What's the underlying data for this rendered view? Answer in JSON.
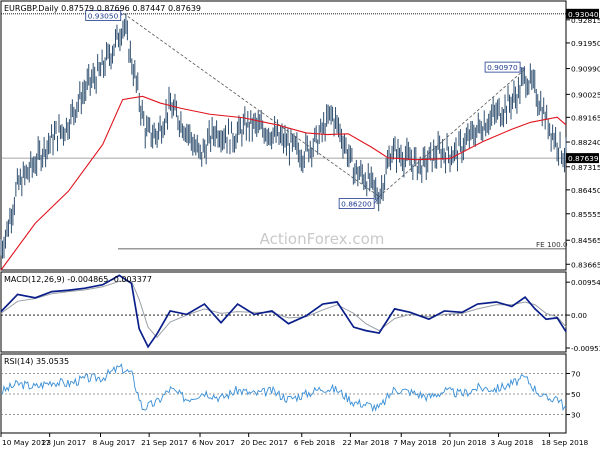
{
  "chart_data": {
    "type": "line",
    "symbol_header": "EURGBP.Daily  0.87579 0.87696 0.87447 0.87639",
    "watermark": "ActionForex.com",
    "x_tick_labels": [
      "10 May 2017",
      "23 Jun 2017",
      "8 Aug 2017",
      "21 Sep 2017",
      "6 Nov 2017",
      "20 Dec 2017",
      "6 Feb 2018",
      "22 Mar 2018",
      "7 May 2018",
      "20 Jun 2018",
      "3 Aug 2018",
      "18 Sep 2018"
    ],
    "main": {
      "y_ticks": [
        "0.92815",
        "0.91950",
        "0.90990",
        "0.90025",
        "0.89165",
        "0.88240",
        "0.87315",
        "0.86450",
        "0.85555",
        "0.84565",
        "0.83665"
      ],
      "ylim": [
        0.8345,
        0.9352
      ],
      "top_right_label": "0.93040",
      "last_price": 0.87639,
      "last_price_label": "0.87639",
      "fe_label": "FE 100.0",
      "fe_level": 0.8424,
      "annotations": [
        {
          "label": "0.93050",
          "date": "2017-08-29",
          "value": 0.9305
        },
        {
          "label": "0.86200",
          "date": "2018-04-17",
          "value": 0.862
        },
        {
          "label": "0.90970",
          "date": "2018-08-27",
          "value": 0.9097
        }
      ],
      "price_series": {
        "name": "",
        "dates": [
          "2017-05-10",
          "2017-05-15",
          "2017-05-25",
          "2017-06-05",
          "2017-06-15",
          "2017-06-28",
          "2017-07-08",
          "2017-07-18",
          "2017-07-28",
          "2017-08-08",
          "2017-08-20",
          "2017-08-29",
          "2017-09-08",
          "2017-09-18",
          "2017-09-28",
          "2017-10-10",
          "2017-10-25",
          "2017-11-06",
          "2017-11-20",
          "2017-12-05",
          "2017-12-20",
          "2018-01-05",
          "2018-01-20",
          "2018-02-06",
          "2018-02-20",
          "2018-03-05",
          "2018-03-15",
          "2018-03-25",
          "2018-04-05",
          "2018-04-17",
          "2018-04-28",
          "2018-05-10",
          "2018-05-25",
          "2018-06-10",
          "2018-06-25",
          "2018-07-10",
          "2018-07-25",
          "2018-08-05",
          "2018-08-20",
          "2018-08-27",
          "2018-09-05",
          "2018-09-15",
          "2018-09-25",
          "2018-10-03"
        ],
        "values": [
          0.8425,
          0.8485,
          0.866,
          0.872,
          0.878,
          0.885,
          0.888,
          0.897,
          0.904,
          0.909,
          0.918,
          0.927,
          0.907,
          0.886,
          0.885,
          0.896,
          0.887,
          0.877,
          0.887,
          0.884,
          0.889,
          0.887,
          0.883,
          0.878,
          0.883,
          0.893,
          0.884,
          0.872,
          0.869,
          0.862,
          0.879,
          0.877,
          0.873,
          0.879,
          0.878,
          0.885,
          0.891,
          0.894,
          0.9,
          0.907,
          0.902,
          0.891,
          0.882,
          0.8764
        ]
      },
      "ma_series": {
        "name": "",
        "dates": [
          "2017-05-10",
          "2017-06-10",
          "2017-07-10",
          "2017-08-10",
          "2017-08-28",
          "2017-09-15",
          "2017-10-01",
          "2017-10-20",
          "2017-11-15",
          "2017-12-15",
          "2018-01-15",
          "2018-02-10",
          "2018-03-01",
          "2018-03-20",
          "2018-04-10",
          "2018-04-25",
          "2018-05-20",
          "2018-06-20",
          "2018-07-20",
          "2018-08-15",
          "2018-09-01",
          "2018-09-25",
          "2018-10-03"
        ],
        "values": [
          0.8345,
          0.852,
          0.864,
          0.8815,
          0.8983,
          0.8995,
          0.897,
          0.895,
          0.8928,
          0.8915,
          0.8888,
          0.8858,
          0.8852,
          0.8855,
          0.8805,
          0.8765,
          0.8758,
          0.8762,
          0.8826,
          0.8872,
          0.8898,
          0.8917,
          0.8888
        ]
      }
    },
    "macd": {
      "label": "MACD(12,26,9) -0.004865 -0.003377",
      "y_ticks": [
        "0.00954",
        "0.00",
        "-0.009538"
      ],
      "ylim": [
        -0.0107,
        0.0122
      ],
      "zero_line": 0,
      "dates": [
        "2017-05-10",
        "2017-05-25",
        "2017-06-10",
        "2017-06-25",
        "2017-07-10",
        "2017-07-25",
        "2017-08-10",
        "2017-08-25",
        "2017-09-05",
        "2017-09-12",
        "2017-09-20",
        "2017-09-28",
        "2017-10-10",
        "2017-10-25",
        "2017-11-10",
        "2017-11-25",
        "2017-12-10",
        "2017-12-25",
        "2018-01-10",
        "2018-01-25",
        "2018-02-10",
        "2018-02-25",
        "2018-03-10",
        "2018-03-25",
        "2018-04-05",
        "2018-04-17",
        "2018-05-01",
        "2018-05-15",
        "2018-06-01",
        "2018-06-15",
        "2018-07-01",
        "2018-07-15",
        "2018-08-01",
        "2018-08-15",
        "2018-08-27",
        "2018-09-05",
        "2018-09-15",
        "2018-09-25",
        "2018-10-03"
      ],
      "macd_values": [
        0.001,
        0.006,
        0.005,
        0.0068,
        0.0072,
        0.0078,
        0.0088,
        0.0115,
        0.0092,
        -0.004,
        -0.0092,
        -0.0055,
        0.0012,
        0.0002,
        0.0032,
        -0.0022,
        0.0032,
        0.0002,
        0.0012,
        -0.0025,
        -0.0002,
        0.0032,
        0.0038,
        -0.0035,
        -0.0045,
        -0.0052,
        0.0018,
        0.0008,
        -0.0012,
        0.0012,
        0.0008,
        0.0032,
        0.0038,
        0.0025,
        0.0052,
        0.0018,
        -0.0012,
        -0.0008,
        -0.0048
      ],
      "signal_values": [
        0.0005,
        0.004,
        0.0048,
        0.0062,
        0.0068,
        0.0073,
        0.0082,
        0.0098,
        0.0098,
        0.0045,
        -0.0035,
        -0.0065,
        -0.002,
        0.0,
        0.0018,
        0.0005,
        0.001,
        0.0008,
        0.0008,
        -0.0008,
        -0.0005,
        0.0015,
        0.003,
        0.0005,
        -0.0025,
        -0.0045,
        -0.001,
        0.0002,
        -0.0005,
        0.0002,
        0.0005,
        0.0018,
        0.003,
        0.003,
        0.0038,
        0.003,
        0.0005,
        -0.0005,
        -0.0034
      ]
    },
    "rsi": {
      "label": "RSI(14) 35.0535",
      "y_ticks": [
        "70",
        "50",
        "30"
      ],
      "ylim": [
        12,
        88
      ],
      "levels": [
        70,
        50,
        30
      ],
      "dates": [
        "2017-05-10",
        "2017-05-25",
        "2017-06-10",
        "2017-06-25",
        "2017-07-10",
        "2017-07-25",
        "2017-08-10",
        "2017-08-25",
        "2017-09-05",
        "2017-09-15",
        "2017-09-28",
        "2017-10-10",
        "2017-10-25",
        "2017-11-10",
        "2017-11-25",
        "2017-12-10",
        "2017-12-25",
        "2018-01-10",
        "2018-01-25",
        "2018-02-10",
        "2018-02-25",
        "2018-03-10",
        "2018-03-25",
        "2018-04-05",
        "2018-04-17",
        "2018-05-01",
        "2018-05-15",
        "2018-06-01",
        "2018-06-15",
        "2018-07-01",
        "2018-07-15",
        "2018-08-01",
        "2018-08-15",
        "2018-08-27",
        "2018-09-05",
        "2018-09-15",
        "2018-09-25",
        "2018-10-03"
      ],
      "values": [
        52,
        60,
        57,
        62,
        60,
        65,
        66,
        76,
        70,
        36,
        42,
        55,
        45,
        52,
        46,
        54,
        50,
        53,
        45,
        50,
        56,
        54,
        42,
        40,
        36,
        55,
        52,
        47,
        53,
        50,
        56,
        55,
        60,
        66,
        55,
        45,
        47,
        35
      ]
    }
  }
}
